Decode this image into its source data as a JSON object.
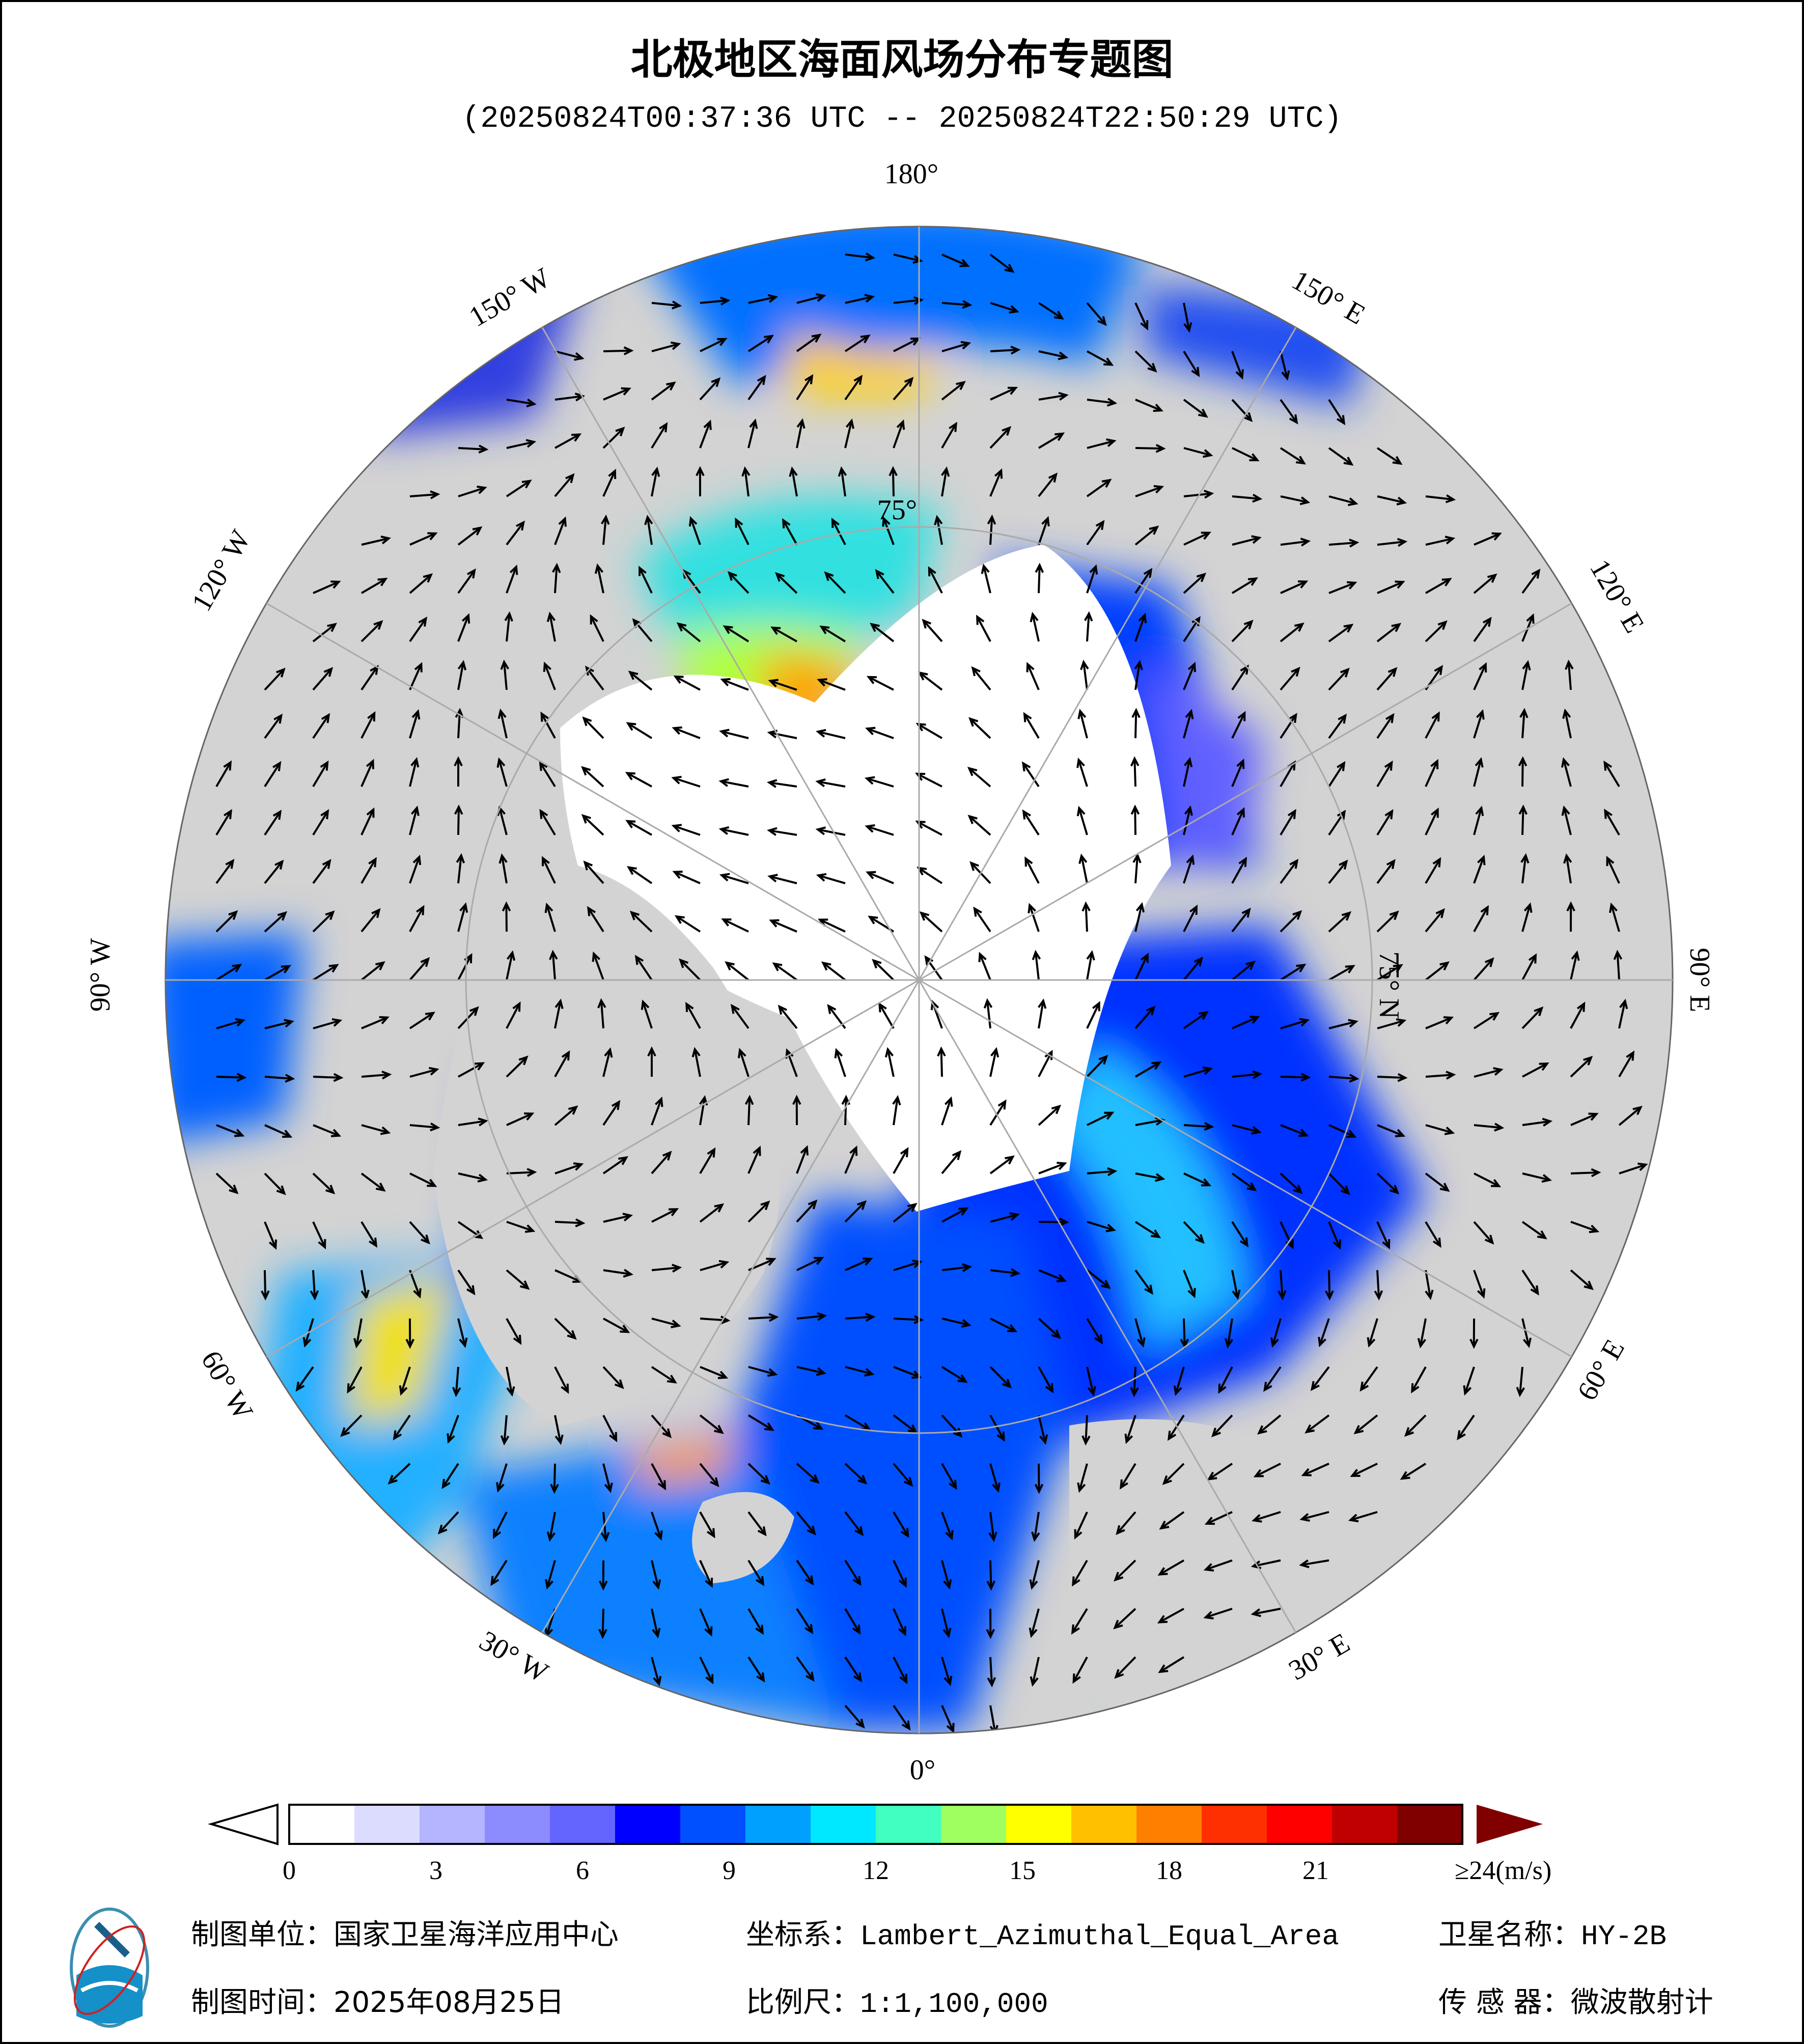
{
  "title": "北极地区海面风场分布专题图",
  "subtitle": "(20250824T00:37:36 UTC -- 20250824T22:50:29 UTC)",
  "map": {
    "projection": "Lambert_Azimuthal_Equal_Area",
    "colors": {
      "land": "#d3d3d3",
      "ice": "#ffffff",
      "coast": "#000000",
      "grid": "#aaaaaa"
    },
    "graticule_labels": {
      "lon_180": "180°",
      "lon_150w": "150° W",
      "lon_120w": "120° W",
      "lon_90w": "90° W",
      "lon_60w": "60° W",
      "lon_30w": "30° W",
      "lon_0": "0°",
      "lon_30e": "30° E",
      "lon_60e": "60° E",
      "lon_90e": "90° E",
      "lon_120e": "120° E",
      "lon_150e": "150° E",
      "lat_75n": "75° N",
      "lat_75": "75°"
    }
  },
  "colorbar": {
    "ticks": [
      "0",
      "3",
      "6",
      "9",
      "12",
      "15",
      "18",
      "21",
      "≥24(m/s)"
    ],
    "min": 0,
    "max": 24,
    "unit": "m/s",
    "colors": [
      "#ffffff",
      "#dcdcff",
      "#b4b4ff",
      "#8c8cff",
      "#6464ff",
      "#0000ff",
      "#0050ff",
      "#00a0ff",
      "#00e8ff",
      "#40ffc0",
      "#a0ff60",
      "#ffff00",
      "#ffc000",
      "#ff8000",
      "#ff3000",
      "#ff0000",
      "#c00000",
      "#800000"
    ]
  },
  "footer": {
    "unit_label": "制图单位：",
    "unit_value": "国家卫星海洋应用中心",
    "coord_label": "坐标系：",
    "coord_value": "Lambert_Azimuthal_Equal_Area",
    "satellite_label": "卫星名称：",
    "satellite_value": "HY-2B",
    "date_label": "制图时间：",
    "date_value": "2025年08月25日",
    "scale_label": "比例尺：",
    "scale_value": "1:1,100,000",
    "sensor_label": "传 感 器：",
    "sensor_value": "微波散射计"
  }
}
